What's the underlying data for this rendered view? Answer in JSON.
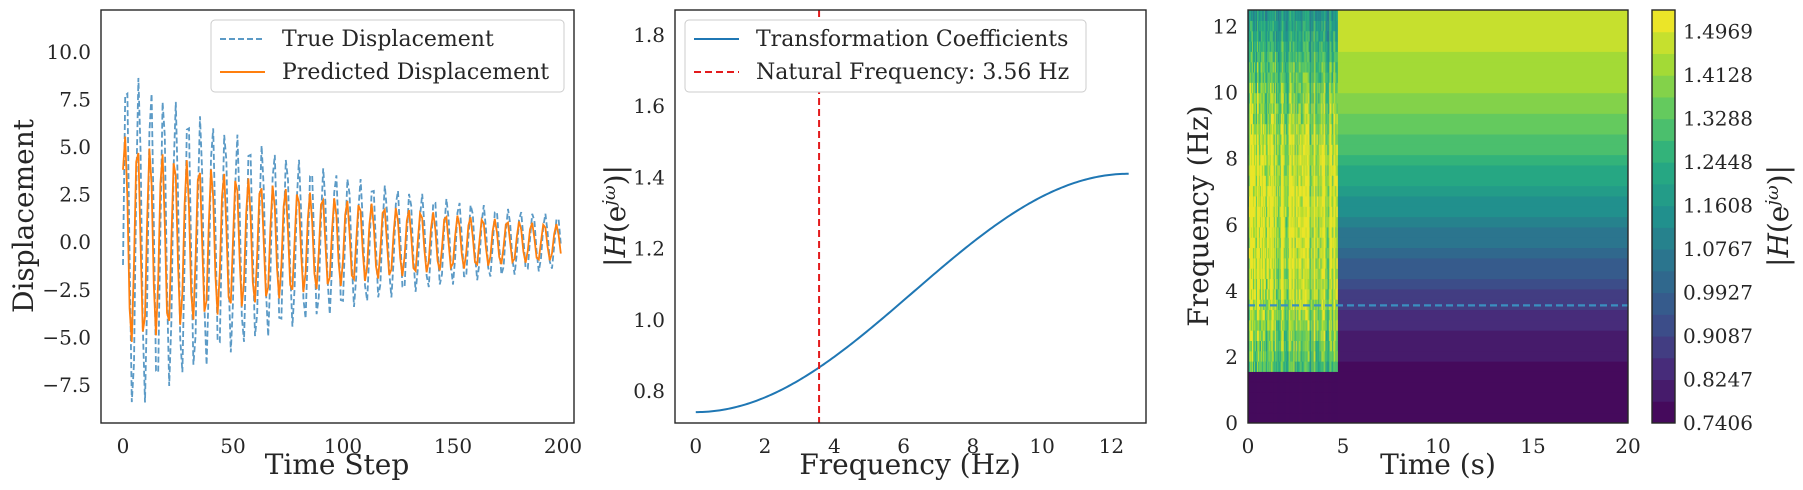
{
  "chart_data": [
    {
      "type": "line",
      "xlabel": "Time Step",
      "ylabel": "Displacement",
      "xlim": [
        -10,
        205
      ],
      "ylim": [
        -9.5,
        12.2
      ],
      "xticks": [
        "0",
        "50",
        "100",
        "150",
        "200"
      ],
      "xtick_values": [
        0,
        50,
        100,
        150,
        200
      ],
      "yticks": [
        "−7.5",
        "−5.0",
        "−2.5",
        "0.0",
        "2.5",
        "5.0",
        "7.5",
        "10.0"
      ],
      "ytick_values": [
        -7.5,
        -5.0,
        -2.5,
        0.0,
        2.5,
        5.0,
        7.5,
        10.0
      ],
      "legend_position": "top-right",
      "series": [
        {
          "name": "True Displacement",
          "style": "dashed",
          "color": "#5b9ac6",
          "samples": 200,
          "initial_amplitude": 9.3,
          "decay_rate": 0.0095,
          "period_steps": 5.6,
          "phase": -1.7,
          "offset": 0.0
        },
        {
          "name": "Predicted Displacement",
          "style": "solid",
          "color": "#ff7f0e",
          "samples": 200,
          "initial_amplitude": 5.6,
          "decay_rate": 0.009,
          "period_steps": 5.6,
          "phase": -1.1,
          "offset": 0.0,
          "start_value": 3.8
        }
      ],
      "grid": false
    },
    {
      "type": "line",
      "xlabel": "Frequency (Hz)",
      "ylabel": "|H(e^jω)|",
      "xlim": [
        -0.6,
        13.0
      ],
      "ylim": [
        0.71,
        1.87
      ],
      "xticks": [
        "0",
        "2",
        "4",
        "6",
        "8",
        "10",
        "12"
      ],
      "xtick_values": [
        0,
        2,
        4,
        6,
        8,
        10,
        12
      ],
      "yticks": [
        "0.8",
        "1.0",
        "1.2",
        "1.4",
        "1.6",
        "1.8"
      ],
      "ytick_values": [
        0.8,
        1.0,
        1.2,
        1.4,
        1.6,
        1.8
      ],
      "legend_position": "top-left",
      "series": [
        {
          "name": "Transformation Coefficients",
          "style": "solid",
          "color": "#1f77b4",
          "x_range": [
            0,
            12.5
          ],
          "y_min": 0.7406,
          "y_max": 1.41
        }
      ],
      "vline": {
        "name": "Natural Frequency: 3.56 Hz",
        "x": 3.56,
        "style": "dashed",
        "color": "#e31a1c"
      },
      "grid": false
    },
    {
      "type": "heatmap",
      "xlabel": "Time (s)",
      "ylabel": "Frequency (Hz)",
      "xlim": [
        0,
        20
      ],
      "ylim": [
        0,
        12.5
      ],
      "xticks": [
        "0",
        "5",
        "10",
        "15",
        "20"
      ],
      "xtick_values": [
        0,
        5,
        10,
        15,
        20
      ],
      "yticks": [
        "0",
        "2",
        "4",
        "6",
        "8",
        "10",
        "12"
      ],
      "ytick_values": [
        0,
        2,
        4,
        6,
        8,
        10,
        12
      ],
      "hline": {
        "y": 3.56,
        "style": "dashed",
        "color": "#3a8fc0"
      },
      "transient_end_time": 4.7,
      "colorbar": {
        "label": "|H(e^jω)|",
        "min": 0.7406,
        "max": 1.5389,
        "levels": 19,
        "ticks": [
          "0.7406",
          "0.8247",
          "0.9087",
          "0.9927",
          "1.0767",
          "1.1608",
          "1.2448",
          "1.3288",
          "1.4128",
          "1.4969"
        ],
        "tick_values": [
          0.7406,
          0.8247,
          0.9087,
          0.9927,
          1.0767,
          1.1608,
          1.2448,
          1.3288,
          1.4128,
          1.4969
        ]
      }
    }
  ]
}
